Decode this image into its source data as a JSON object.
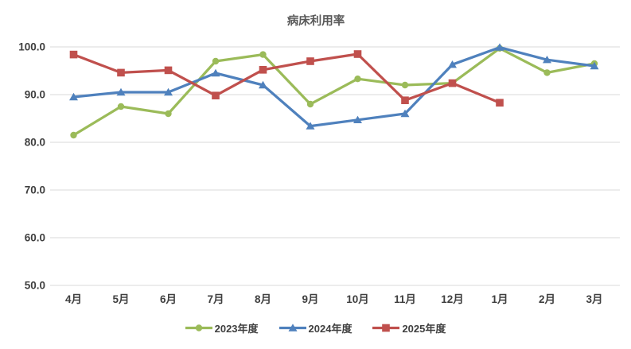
{
  "chart_data": {
    "type": "line",
    "title": "病床利用率",
    "categories": [
      "4月",
      "5月",
      "6月",
      "7月",
      "8月",
      "9月",
      "10月",
      "11月",
      "12月",
      "1月",
      "2月",
      "3月"
    ],
    "series": [
      {
        "name": "2023年度",
        "marker": "circle",
        "color": "#9BBB59",
        "values": [
          81.5,
          87.5,
          86.0,
          97.0,
          98.4,
          88.0,
          93.3,
          92.0,
          92.4,
          99.7,
          94.6,
          96.5
        ]
      },
      {
        "name": "2024年度",
        "marker": "triangle",
        "color": "#4F81BD",
        "values": [
          89.5,
          90.5,
          90.5,
          94.5,
          92.0,
          83.4,
          84.7,
          86.0,
          96.3,
          99.9,
          97.3,
          96.0
        ]
      },
      {
        "name": "2025年度",
        "marker": "square",
        "color": "#C0504D",
        "values": [
          98.4,
          94.6,
          95.1,
          89.8,
          95.2,
          97.0,
          98.5,
          88.8,
          92.4,
          88.3,
          null,
          null
        ]
      }
    ],
    "ylim": [
      50,
      100
    ],
    "ytick_labels": [
      "100.0",
      "90.0",
      "80.0",
      "70.0",
      "60.0",
      "50.0"
    ],
    "grid": true,
    "legend_position": "bottom",
    "colors": {
      "gridline": "#D9D9D9",
      "axis_text": "#3f3f3f",
      "title_text": "#595959"
    }
  }
}
